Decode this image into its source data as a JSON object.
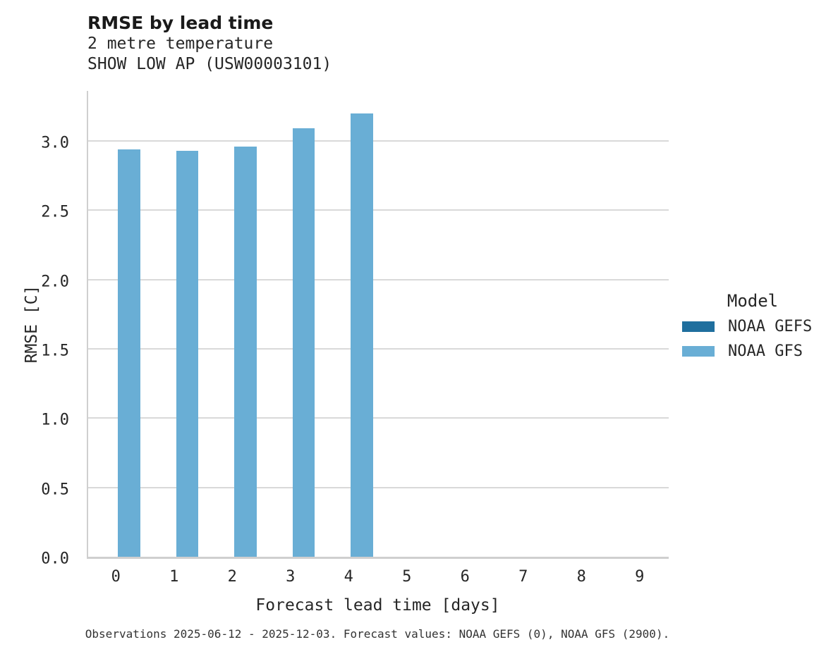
{
  "header": {
    "title": "RMSE by lead time",
    "subtitle_line1": "2 metre temperature",
    "subtitle_line2": "SHOW LOW AP (USW00003101)"
  },
  "chart_data": {
    "type": "bar",
    "title": "RMSE by lead time",
    "subtitle": "2 metre temperature — SHOW LOW AP (USW00003101)",
    "xlabel": "Forecast lead time [days]",
    "ylabel": "RMSE [C]",
    "categories": [
      "0",
      "1",
      "2",
      "3",
      "4",
      "5",
      "6",
      "7",
      "8",
      "9"
    ],
    "series": [
      {
        "name": "NOAA GEFS",
        "color": "#1f6f9e",
        "values": [
          null,
          null,
          null,
          null,
          null,
          null,
          null,
          null,
          null,
          null
        ]
      },
      {
        "name": "NOAA GFS",
        "color": "#69aed5",
        "values": [
          2.94,
          2.93,
          2.96,
          3.09,
          3.2,
          null,
          null,
          null,
          null,
          null
        ]
      }
    ],
    "ylim": [
      0,
      3.376
    ],
    "yticks": [
      "0.0",
      "0.5",
      "1.0",
      "1.5",
      "2.0",
      "2.5",
      "3.0"
    ],
    "grid": "horizontal",
    "legend_title": "Model",
    "legend_position": "right"
  },
  "colors": {
    "bar_gfs": "#69aed5",
    "bar_gefs": "#1f6f9e",
    "gridline": "#d9d9d9",
    "axis_line": "#cfcfcf",
    "text": "#262626"
  },
  "caption": "Observations 2025-06-12 - 2025-12-03. Forecast values: NOAA GEFS (0), NOAA GFS (2900)."
}
